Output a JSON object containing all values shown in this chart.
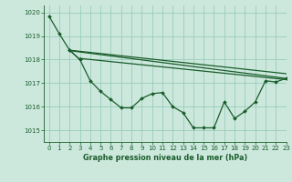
{
  "xlabel": "Graphe pression niveau de la mer (hPa)",
  "ylim": [
    1014.5,
    1020.3
  ],
  "xlim": [
    -0.5,
    23
  ],
  "yticks": [
    1015,
    1016,
    1017,
    1018,
    1019,
    1020
  ],
  "xticks": [
    0,
    1,
    2,
    3,
    4,
    5,
    6,
    7,
    8,
    9,
    10,
    11,
    12,
    13,
    14,
    15,
    16,
    17,
    18,
    19,
    20,
    21,
    22,
    23
  ],
  "background_color": "#cce8dd",
  "grid_color": "#99ccbb",
  "line_color": "#1a5c2a",
  "line1_x": [
    0,
    1,
    2,
    3
  ],
  "line1_y": [
    1019.85,
    1019.1,
    1018.4,
    1018.0
  ],
  "line2_x": [
    2,
    3,
    4,
    5,
    6,
    7,
    8,
    9,
    10,
    11,
    12,
    13,
    14,
    15,
    16,
    17,
    18,
    19,
    20,
    21,
    22,
    23
  ],
  "line2_y": [
    1018.4,
    1018.0,
    1017.1,
    1016.65,
    1016.3,
    1015.95,
    1015.95,
    1016.35,
    1016.55,
    1016.6,
    1016.0,
    1015.75,
    1015.1,
    1015.1,
    1015.1,
    1016.2,
    1015.5,
    1015.8,
    1016.2,
    1017.1,
    1017.05,
    1017.2
  ],
  "line3_x": [
    2,
    23
  ],
  "line3_y": [
    1018.4,
    1017.4
  ],
  "line4_x": [
    2,
    23
  ],
  "line4_y": [
    1018.38,
    1017.2
  ],
  "line5_x": [
    3,
    23
  ],
  "line5_y": [
    1018.05,
    1017.15
  ]
}
